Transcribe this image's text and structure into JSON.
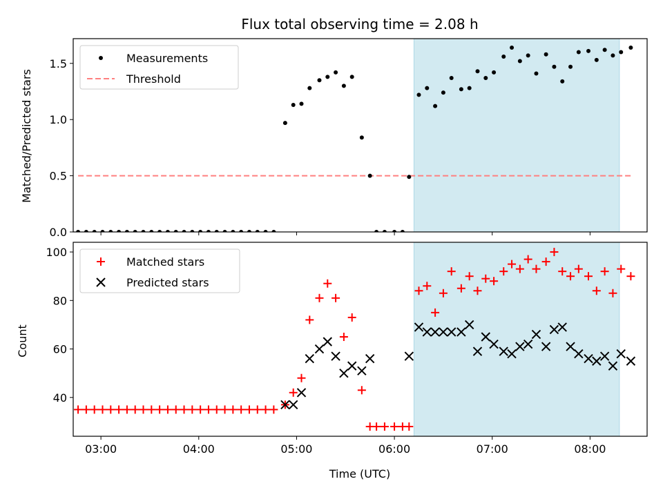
{
  "chart_data": [
    {
      "type": "scatter",
      "title": "Flux total observing time = 2.08 h",
      "ylabel": "Matched/Predicted stars",
      "xlabel": "",
      "xlim": [
        "02:43",
        "08:35"
      ],
      "ylim": [
        0,
        1.72
      ],
      "x_ticks": [
        "03:00",
        "04:00",
        "05:00",
        "06:00",
        "07:00",
        "08:00"
      ],
      "y_ticks": [
        "0.0",
        "0.5",
        "1.0",
        "1.5"
      ],
      "observing_window": [
        "06:12",
        "08:18"
      ],
      "legend": {
        "placement": "top-left",
        "entries": [
          "Measurements",
          "Threshold"
        ]
      },
      "threshold": 0.5,
      "colors": {
        "measurements": "#000000",
        "threshold": "#ff7f7f",
        "window": "#add8e6"
      },
      "series": [
        {
          "name": "Measurements",
          "points": [
            [
              "02:46",
              0
            ],
            [
              "02:51",
              0
            ],
            [
              "02:56",
              0
            ],
            [
              "03:01",
              0
            ],
            [
              "03:06",
              0
            ],
            [
              "03:11",
              0
            ],
            [
              "03:16",
              0
            ],
            [
              "03:21",
              0
            ],
            [
              "03:26",
              0
            ],
            [
              "03:31",
              0
            ],
            [
              "03:36",
              0
            ],
            [
              "03:41",
              0
            ],
            [
              "03:46",
              0
            ],
            [
              "03:51",
              0
            ],
            [
              "03:56",
              0
            ],
            [
              "04:01",
              0
            ],
            [
              "04:06",
              0
            ],
            [
              "04:11",
              0
            ],
            [
              "04:16",
              0
            ],
            [
              "04:21",
              0
            ],
            [
              "04:26",
              0
            ],
            [
              "04:31",
              0
            ],
            [
              "04:36",
              0
            ],
            [
              "04:41",
              0
            ],
            [
              "04:46",
              0
            ],
            [
              "04:53",
              0.97
            ],
            [
              "04:58",
              1.13
            ],
            [
              "05:03",
              1.14
            ],
            [
              "05:08",
              1.28
            ],
            [
              "05:14",
              1.35
            ],
            [
              "05:19",
              1.38
            ],
            [
              "05:24",
              1.42
            ],
            [
              "05:29",
              1.3
            ],
            [
              "05:34",
              1.38
            ],
            [
              "05:40",
              0.84
            ],
            [
              "05:45",
              0.5
            ],
            [
              "05:49",
              0
            ],
            [
              "05:54",
              0
            ],
            [
              "06:00",
              0
            ],
            [
              "06:05",
              0
            ],
            [
              "06:09",
              0.49
            ],
            [
              "06:15",
              1.22
            ],
            [
              "06:20",
              1.28
            ],
            [
              "06:25",
              1.12
            ],
            [
              "06:30",
              1.24
            ],
            [
              "06:35",
              1.37
            ],
            [
              "06:41",
              1.27
            ],
            [
              "06:46",
              1.28
            ],
            [
              "06:51",
              1.43
            ],
            [
              "06:56",
              1.37
            ],
            [
              "07:01",
              1.42
            ],
            [
              "07:07",
              1.56
            ],
            [
              "07:12",
              1.64
            ],
            [
              "07:17",
              1.52
            ],
            [
              "07:22",
              1.57
            ],
            [
              "07:27",
              1.41
            ],
            [
              "07:33",
              1.58
            ],
            [
              "07:38",
              1.47
            ],
            [
              "07:43",
              1.34
            ],
            [
              "07:48",
              1.47
            ],
            [
              "07:53",
              1.6
            ],
            [
              "07:59",
              1.61
            ],
            [
              "08:04",
              1.53
            ],
            [
              "08:09",
              1.62
            ],
            [
              "08:14",
              1.57
            ],
            [
              "08:19",
              1.6
            ],
            [
              "08:25",
              1.64
            ]
          ]
        }
      ]
    },
    {
      "type": "scatter",
      "title": "",
      "xlabel": "Time (UTC)",
      "ylabel": "Count",
      "xlim": [
        "02:43",
        "08:35"
      ],
      "ylim": [
        24,
        104
      ],
      "x_ticks": [
        "03:00",
        "04:00",
        "05:00",
        "06:00",
        "07:00",
        "08:00"
      ],
      "y_ticks": [
        "40",
        "60",
        "80",
        "100"
      ],
      "observing_window": [
        "06:12",
        "08:18"
      ],
      "legend": {
        "placement": "top-left",
        "entries": [
          "Matched stars",
          "Predicted stars"
        ]
      },
      "colors": {
        "matched": "#ff0000",
        "predicted": "#000000",
        "window": "#add8e6"
      },
      "series": [
        {
          "name": "Matched stars",
          "marker": "plus",
          "points": [
            [
              "02:46",
              35
            ],
            [
              "02:51",
              35
            ],
            [
              "02:56",
              35
            ],
            [
              "03:01",
              35
            ],
            [
              "03:06",
              35
            ],
            [
              "03:11",
              35
            ],
            [
              "03:16",
              35
            ],
            [
              "03:21",
              35
            ],
            [
              "03:26",
              35
            ],
            [
              "03:31",
              35
            ],
            [
              "03:36",
              35
            ],
            [
              "03:41",
              35
            ],
            [
              "03:46",
              35
            ],
            [
              "03:51",
              35
            ],
            [
              "03:56",
              35
            ],
            [
              "04:01",
              35
            ],
            [
              "04:06",
              35
            ],
            [
              "04:11",
              35
            ],
            [
              "04:16",
              35
            ],
            [
              "04:21",
              35
            ],
            [
              "04:26",
              35
            ],
            [
              "04:31",
              35
            ],
            [
              "04:36",
              35
            ],
            [
              "04:41",
              35
            ],
            [
              "04:46",
              35
            ],
            [
              "04:53",
              37
            ],
            [
              "04:58",
              42
            ],
            [
              "05:03",
              48
            ],
            [
              "05:08",
              72
            ],
            [
              "05:14",
              81
            ],
            [
              "05:19",
              87
            ],
            [
              "05:24",
              81
            ],
            [
              "05:29",
              65
            ],
            [
              "05:34",
              73
            ],
            [
              "05:40",
              43
            ],
            [
              "05:45",
              28
            ],
            [
              "05:49",
              28
            ],
            [
              "05:54",
              28
            ],
            [
              "06:00",
              28
            ],
            [
              "06:05",
              28
            ],
            [
              "06:09",
              28
            ],
            [
              "06:15",
              84
            ],
            [
              "06:20",
              86
            ],
            [
              "06:25",
              75
            ],
            [
              "06:30",
              83
            ],
            [
              "06:35",
              92
            ],
            [
              "06:41",
              85
            ],
            [
              "06:46",
              90
            ],
            [
              "06:51",
              84
            ],
            [
              "06:56",
              89
            ],
            [
              "07:01",
              88
            ],
            [
              "07:07",
              92
            ],
            [
              "07:12",
              95
            ],
            [
              "07:17",
              93
            ],
            [
              "07:22",
              97
            ],
            [
              "07:27",
              93
            ],
            [
              "07:33",
              96
            ],
            [
              "07:38",
              100
            ],
            [
              "07:43",
              92
            ],
            [
              "07:48",
              90
            ],
            [
              "07:53",
              93
            ],
            [
              "07:59",
              90
            ],
            [
              "08:04",
              84
            ],
            [
              "08:09",
              92
            ],
            [
              "08:14",
              83
            ],
            [
              "08:19",
              93
            ],
            [
              "08:25",
              90
            ]
          ]
        },
        {
          "name": "Predicted stars",
          "marker": "x",
          "points": [
            [
              "04:53",
              37
            ],
            [
              "04:58",
              37
            ],
            [
              "05:03",
              42
            ],
            [
              "05:08",
              56
            ],
            [
              "05:14",
              60
            ],
            [
              "05:19",
              63
            ],
            [
              "05:24",
              57
            ],
            [
              "05:29",
              50
            ],
            [
              "05:34",
              53
            ],
            [
              "05:40",
              51
            ],
            [
              "05:45",
              56
            ],
            [
              "06:09",
              57
            ],
            [
              "06:15",
              69
            ],
            [
              "06:20",
              67
            ],
            [
              "06:25",
              67
            ],
            [
              "06:30",
              67
            ],
            [
              "06:35",
              67
            ],
            [
              "06:41",
              67
            ],
            [
              "06:46",
              70
            ],
            [
              "06:51",
              59
            ],
            [
              "06:56",
              65
            ],
            [
              "07:01",
              62
            ],
            [
              "07:07",
              59
            ],
            [
              "07:12",
              58
            ],
            [
              "07:17",
              61
            ],
            [
              "07:22",
              62
            ],
            [
              "07:27",
              66
            ],
            [
              "07:33",
              61
            ],
            [
              "07:38",
              68
            ],
            [
              "07:43",
              69
            ],
            [
              "07:48",
              61
            ],
            [
              "07:53",
              58
            ],
            [
              "07:59",
              56
            ],
            [
              "08:04",
              55
            ],
            [
              "08:09",
              57
            ],
            [
              "08:14",
              53
            ],
            [
              "08:19",
              58
            ],
            [
              "08:25",
              55
            ]
          ]
        }
      ]
    }
  ]
}
